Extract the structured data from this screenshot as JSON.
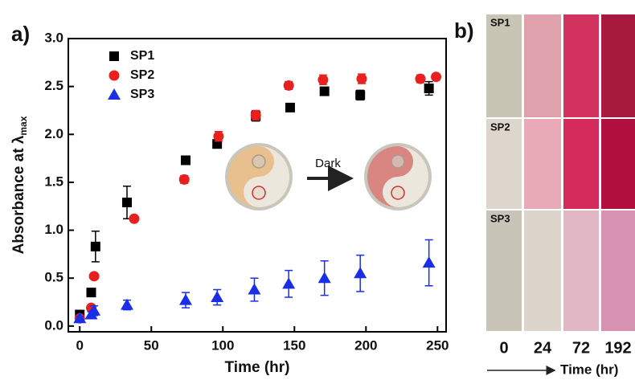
{
  "panel_labels": [
    "a)",
    "b)"
  ],
  "chart_data": {
    "type": "scatter",
    "xlabel": "Time (hr)",
    "ylabel": "Absorbance at λ",
    "ylabel_sub": "max",
    "xlim": [
      -8,
      256
    ],
    "ylim": [
      -0.06,
      3.0
    ],
    "xticks": [
      0,
      50,
      100,
      150,
      200,
      250
    ],
    "yticks": [
      {
        "value": 0,
        "label": "0.0"
      },
      {
        "value": 0.5,
        "label": "0.5"
      },
      {
        "value": 1,
        "label": "1.0"
      },
      {
        "value": 1.5,
        "label": "1.5"
      },
      {
        "value": 2,
        "label": "2.0"
      },
      {
        "value": 2.5,
        "label": "2.5"
      },
      {
        "value": 3,
        "label": "3.0"
      }
    ],
    "series": [
      {
        "name": "SP1",
        "color": "#000000",
        "marker": "square",
        "x": [
          0,
          8,
          11,
          33,
          74,
          96,
          123,
          147,
          171,
          196,
          244
        ],
        "values": [
          0.12,
          0.35,
          0.83,
          1.29,
          1.73,
          1.9,
          2.19,
          2.28,
          2.45,
          2.41,
          2.48
        ],
        "errors": [
          0.02,
          0.02,
          0.16,
          0.17,
          0.02,
          0.02,
          0.05,
          0.02,
          0.02,
          0.05,
          0.07
        ]
      },
      {
        "name": "SP2",
        "color": "#e8201e",
        "marker": "circle",
        "x": [
          0,
          8,
          10,
          38,
          73,
          97,
          123,
          146,
          170,
          197,
          238,
          249
        ],
        "values": [
          0.08,
          0.19,
          0.52,
          1.12,
          1.53,
          1.98,
          2.2,
          2.51,
          2.57,
          2.58,
          2.58,
          2.6
        ],
        "errors": [
          0.02,
          0.02,
          0.02,
          0.02,
          0.04,
          0.05,
          0.05,
          0.04,
          0.05,
          0.05,
          0.04,
          0.02
        ]
      },
      {
        "name": "SP3",
        "color": "#1a2ee8",
        "marker": "triangle",
        "x": [
          0,
          8,
          10,
          33,
          74,
          96,
          122,
          146,
          171,
          196,
          244
        ],
        "values": [
          0.08,
          0.12,
          0.16,
          0.22,
          0.27,
          0.3,
          0.38,
          0.44,
          0.5,
          0.55,
          0.66
        ],
        "errors": [
          0.02,
          0.03,
          0.05,
          0.05,
          0.08,
          0.08,
          0.12,
          0.14,
          0.18,
          0.19,
          0.24
        ]
      }
    ],
    "annotation": "Dark"
  },
  "swatches": {
    "rows": [
      "SP1",
      "SP2",
      "SP3"
    ],
    "columns": [
      "0",
      "24",
      "72",
      "192"
    ],
    "xlabel": "Time (hr)"
  }
}
